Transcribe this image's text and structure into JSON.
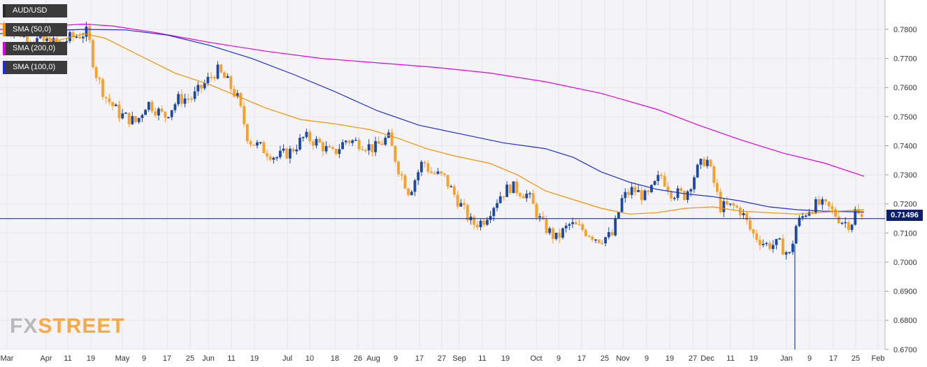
{
  "legend": [
    {
      "label": "AUD/USD",
      "color": "#2a2a2a"
    },
    {
      "label": "SMA (50,0)",
      "color": "#f39200"
    },
    {
      "label": "SMA (200,0)",
      "color": "#e100e1"
    },
    {
      "label": "SMA (100,0)",
      "color": "#1a2fd4"
    }
  ],
  "current_price_label": "0.71496",
  "logo": {
    "part1": "FX",
    "part2": "STREET"
  },
  "colors": {
    "bull": "#1d49a6",
    "bear": "#f7a12a",
    "sma50": "#f39200",
    "sma100": "#1a2fd4",
    "sma200": "#e100e1",
    "price_line": "#0d1e6e",
    "grid": "#e6e6ec",
    "background": "#f3f3f8"
  },
  "chart_data": {
    "type": "candlestick",
    "title": "AUD/USD",
    "ylim": [
      0.6685,
      0.7855
    ],
    "y_ticks": [
      "0.7800",
      "0.7700",
      "0.7600",
      "0.7500",
      "0.7400",
      "0.7300",
      "0.7200",
      "0.7100",
      "0.7000",
      "0.6900",
      "0.6800",
      "0.6700"
    ],
    "x_labels": [
      "Mar",
      "Apr",
      "11",
      "19",
      "May",
      "9",
      "17",
      "25",
      "Jun",
      "11",
      "19",
      "Jul",
      "10",
      "18",
      "26",
      "Aug",
      "9",
      "17",
      "27",
      "Sep",
      "11",
      "19",
      "Oct",
      "9",
      "17",
      "25",
      "Nov",
      "9",
      "19",
      "27",
      "Dec",
      "11",
      "19",
      "Jan",
      "9",
      "17",
      "25",
      "Feb"
    ],
    "current_price": 0.71496,
    "sma_50": [
      [
        0,
        0.782
      ],
      [
        40,
        0.78
      ],
      [
        80,
        0.776
      ],
      [
        120,
        0.7785
      ],
      [
        150,
        0.777
      ],
      [
        200,
        0.771
      ],
      [
        250,
        0.765
      ],
      [
        300,
        0.761
      ],
      [
        340,
        0.757
      ],
      [
        380,
        0.753
      ],
      [
        430,
        0.749
      ],
      [
        480,
        0.7475
      ],
      [
        530,
        0.7455
      ],
      [
        570,
        0.7425
      ],
      [
        610,
        0.739
      ],
      [
        650,
        0.7365
      ],
      [
        700,
        0.734
      ],
      [
        740,
        0.73
      ],
      [
        780,
        0.7245
      ],
      [
        820,
        0.7215
      ],
      [
        860,
        0.7185
      ],
      [
        900,
        0.7165
      ],
      [
        940,
        0.717
      ],
      [
        980,
        0.7185
      ],
      [
        1020,
        0.719
      ],
      [
        1060,
        0.7175
      ],
      [
        1100,
        0.717
      ],
      [
        1140,
        0.7165
      ],
      [
        1170,
        0.717
      ],
      [
        1200,
        0.7175
      ],
      [
        1236,
        0.718
      ]
    ],
    "sma_100": [
      [
        0,
        0.7785
      ],
      [
        60,
        0.7795
      ],
      [
        120,
        0.78
      ],
      [
        180,
        0.7798
      ],
      [
        240,
        0.778
      ],
      [
        300,
        0.7745
      ],
      [
        360,
        0.77
      ],
      [
        420,
        0.7645
      ],
      [
        480,
        0.7585
      ],
      [
        540,
        0.752
      ],
      [
        600,
        0.747
      ],
      [
        660,
        0.744
      ],
      [
        720,
        0.741
      ],
      [
        780,
        0.739
      ],
      [
        820,
        0.736
      ],
      [
        860,
        0.731
      ],
      [
        900,
        0.7275
      ],
      [
        940,
        0.725
      ],
      [
        980,
        0.7235
      ],
      [
        1020,
        0.7225
      ],
      [
        1060,
        0.721
      ],
      [
        1100,
        0.719
      ],
      [
        1140,
        0.718
      ],
      [
        1180,
        0.7175
      ],
      [
        1236,
        0.7172
      ]
    ],
    "sma_200": [
      [
        0,
        0.78
      ],
      [
        60,
        0.781
      ],
      [
        120,
        0.7818
      ],
      [
        160,
        0.7812
      ],
      [
        220,
        0.779
      ],
      [
        300,
        0.7755
      ],
      [
        380,
        0.7725
      ],
      [
        460,
        0.77
      ],
      [
        540,
        0.7685
      ],
      [
        620,
        0.767
      ],
      [
        700,
        0.765
      ],
      [
        780,
        0.762
      ],
      [
        860,
        0.758
      ],
      [
        940,
        0.7525
      ],
      [
        1000,
        0.747
      ],
      [
        1060,
        0.742
      ],
      [
        1120,
        0.7375
      ],
      [
        1180,
        0.734
      ],
      [
        1236,
        0.7295
      ]
    ],
    "price_path": [
      [
        0,
        0.7825
      ],
      [
        30,
        0.779
      ],
      [
        60,
        0.776
      ],
      [
        90,
        0.775
      ],
      [
        105,
        0.777
      ],
      [
        130,
        0.779
      ],
      [
        140,
        0.766
      ],
      [
        155,
        0.757
      ],
      [
        175,
        0.751
      ],
      [
        200,
        0.748
      ],
      [
        215,
        0.755
      ],
      [
        240,
        0.75
      ],
      [
        260,
        0.756
      ],
      [
        280,
        0.7565
      ],
      [
        300,
        0.762
      ],
      [
        315,
        0.766
      ],
      [
        330,
        0.762
      ],
      [
        345,
        0.756
      ],
      [
        360,
        0.742
      ],
      [
        380,
        0.739
      ],
      [
        400,
        0.736
      ],
      [
        420,
        0.738
      ],
      [
        440,
        0.743
      ],
      [
        460,
        0.741
      ],
      [
        480,
        0.737
      ],
      [
        500,
        0.742
      ],
      [
        520,
        0.741
      ],
      [
        540,
        0.739
      ],
      [
        560,
        0.743
      ],
      [
        575,
        0.732
      ],
      [
        590,
        0.724
      ],
      [
        610,
        0.735
      ],
      [
        620,
        0.731
      ],
      [
        640,
        0.729
      ],
      [
        660,
        0.721
      ],
      [
        680,
        0.713
      ],
      [
        695,
        0.714
      ],
      [
        720,
        0.723
      ],
      [
        735,
        0.726
      ],
      [
        760,
        0.723
      ],
      [
        780,
        0.713
      ],
      [
        800,
        0.708
      ],
      [
        820,
        0.713
      ],
      [
        840,
        0.711
      ],
      [
        860,
        0.708
      ],
      [
        880,
        0.709
      ],
      [
        895,
        0.722
      ],
      [
        910,
        0.725
      ],
      [
        930,
        0.722
      ],
      [
        950,
        0.73
      ],
      [
        965,
        0.724
      ],
      [
        985,
        0.723
      ],
      [
        1000,
        0.731
      ],
      [
        1015,
        0.736
      ],
      [
        1025,
        0.728
      ],
      [
        1035,
        0.719
      ],
      [
        1055,
        0.719
      ],
      [
        1065,
        0.7175
      ],
      [
        1080,
        0.71
      ],
      [
        1100,
        0.706
      ],
      [
        1120,
        0.706
      ],
      [
        1135,
        0.702
      ],
      [
        1142,
        0.712
      ],
      [
        1160,
        0.718
      ],
      [
        1175,
        0.72
      ],
      [
        1190,
        0.7185
      ],
      [
        1210,
        0.714
      ],
      [
        1222,
        0.713
      ],
      [
        1228,
        0.7175
      ],
      [
        1236,
        0.715
      ]
    ]
  }
}
